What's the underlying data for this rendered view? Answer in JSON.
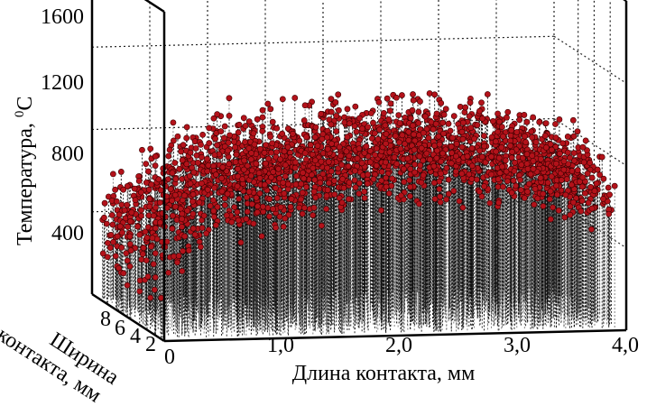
{
  "chart_data": {
    "type": "scatter",
    "subtype": "3d-scatter-with-drop-lines",
    "title": "",
    "xlabel": "Длина контакта, мм",
    "ylabel": "Ширина контакта, мм",
    "zlabel": "Температура, ⁰C",
    "zlabel_main": "Температура, ",
    "zlabel_sup": "0",
    "zlabel_unit": "C",
    "xlim": [
      0,
      4.0
    ],
    "ylim": [
      0,
      9
    ],
    "zlim": [
      0,
      1600
    ],
    "x_ticks": [
      "0",
      "1,0",
      "2,0",
      "3,0",
      "4,0"
    ],
    "x_tick_values": [
      0,
      1.0,
      2.0,
      3.0,
      4.0
    ],
    "y_ticks": [
      "8",
      "6",
      "4",
      "2"
    ],
    "y_tick_values": [
      8,
      6,
      4,
      2
    ],
    "z_ticks": [
      "400",
      "800",
      "1200",
      "1600"
    ],
    "z_tick_values": [
      400,
      800,
      1200,
      1600
    ],
    "grid": true,
    "marker_color": "#b3121a",
    "stem_color": "#000000",
    "approx_temperature_profile": {
      "x": [
        0.0,
        0.25,
        0.5,
        1.0,
        1.5,
        2.0,
        2.5,
        3.0,
        3.5,
        4.0
      ],
      "temperature_mean": [
        330,
        500,
        610,
        700,
        740,
        770,
        790,
        790,
        740,
        620
      ],
      "temperature_spread": 220,
      "temperature_max": 950
    },
    "n_points_approx": 2200
  }
}
